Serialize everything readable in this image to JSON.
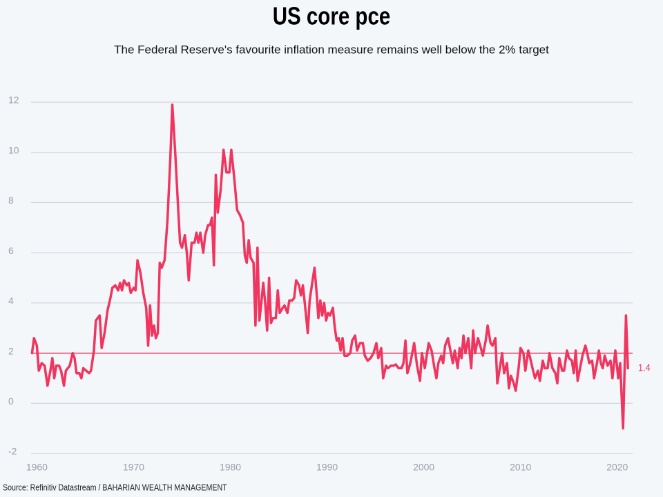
{
  "chart_data": {
    "type": "line",
    "title": "US core pce",
    "subtitle": "The Federal Reserve's favourite inflation measure remains well below the 2% target",
    "source": "Source: Refinitiv Datastream / BAHARIAN WEALTH MANAGEMENT",
    "xlim": [
      1959.4,
      2021.3
    ],
    "ylim": [
      -2,
      12
    ],
    "xticks": [
      1960,
      1970,
      1980,
      1990,
      2000,
      2010,
      2020
    ],
    "yticks": [
      -2,
      0,
      2,
      4,
      6,
      8,
      10,
      12
    ],
    "grid": true,
    "target_line": 2,
    "x": [
      1959.5,
      1959.7,
      1960.0,
      1960.2,
      1960.5,
      1960.8,
      1961.1,
      1961.4,
      1961.6,
      1961.8,
      1962.0,
      1962.3,
      1962.5,
      1962.8,
      1963.0,
      1963.4,
      1963.7,
      1963.9,
      1964.1,
      1964.4,
      1964.6,
      1964.8,
      1965.1,
      1965.4,
      1965.6,
      1965.9,
      1966.1,
      1966.5,
      1966.7,
      1967.0,
      1967.3,
      1967.6,
      1967.8,
      1968.1,
      1968.4,
      1968.6,
      1968.8,
      1969.0,
      1969.3,
      1969.5,
      1969.7,
      1970.0,
      1970.2,
      1970.4,
      1970.7,
      1971.0,
      1971.3,
      1971.5,
      1971.7,
      1971.9,
      1972.1,
      1972.3,
      1972.5,
      1972.7,
      1972.9,
      1973.2,
      1973.5,
      1973.8,
      1974.0,
      1974.3,
      1974.6,
      1974.8,
      1975.0,
      1975.3,
      1975.5,
      1975.7,
      1976.0,
      1976.3,
      1976.5,
      1976.7,
      1976.9,
      1977.2,
      1977.4,
      1977.7,
      1977.9,
      1978.1,
      1978.3,
      1978.5,
      1978.7,
      1979.0,
      1979.3,
      1979.6,
      1979.9,
      1980.1,
      1980.4,
      1980.7,
      1981.0,
      1981.3,
      1981.5,
      1981.7,
      1981.9,
      1982.1,
      1982.4,
      1982.6,
      1982.8,
      1983.0,
      1983.2,
      1983.4,
      1983.6,
      1983.8,
      1984.0,
      1984.2,
      1984.4,
      1984.7,
      1984.9,
      1985.1,
      1985.4,
      1985.6,
      1985.9,
      1986.1,
      1986.4,
      1986.6,
      1986.8,
      1987.1,
      1987.3,
      1987.5,
      1987.8,
      1988.0,
      1988.2,
      1988.5,
      1988.7,
      1988.9,
      1989.1,
      1989.3,
      1989.5,
      1989.7,
      1989.9,
      1990.1,
      1990.3,
      1990.6,
      1990.8,
      1991.0,
      1991.2,
      1991.4,
      1991.6,
      1991.8,
      1992.1,
      1992.4,
      1992.6,
      1992.9,
      1993.1,
      1993.4,
      1993.7,
      1993.9,
      1994.2,
      1994.5,
      1994.8,
      1995.1,
      1995.3,
      1995.6,
      1995.8,
      1996.1,
      1996.3,
      1996.6,
      1996.9,
      1997.1,
      1997.4,
      1997.7,
      1997.9,
      1998.1,
      1998.3,
      1998.6,
      1998.8,
      1999.0,
      1999.3,
      1999.6,
      1999.8,
      2000.1,
      2000.3,
      2000.5,
      2000.8,
      2001.1,
      2001.3,
      2001.5,
      2001.8,
      2002.0,
      2002.2,
      2002.5,
      2002.8,
      2003.0,
      2003.2,
      2003.5,
      2003.7,
      2003.9,
      2004.1,
      2004.3,
      2004.6,
      2004.9,
      2005.1,
      2005.3,
      2005.6,
      2005.9,
      2006.1,
      2006.4,
      2006.6,
      2006.9,
      2007.1,
      2007.4,
      2007.6,
      2007.9,
      2008.1,
      2008.3,
      2008.6,
      2008.8,
      2009.0,
      2009.3,
      2009.5,
      2009.8,
      2010.0,
      2010.3,
      2010.5,
      2010.8,
      2011.0,
      2011.3,
      2011.5,
      2011.8,
      2012.0,
      2012.3,
      2012.5,
      2012.8,
      2013.0,
      2013.3,
      2013.6,
      2013.8,
      2014.0,
      2014.3,
      2014.5,
      2014.8,
      2015.0,
      2015.3,
      2015.5,
      2015.7,
      2015.9,
      2016.2,
      2016.4,
      2016.7,
      2016.9,
      2017.1,
      2017.4,
      2017.6,
      2017.9,
      2018.1,
      2018.3,
      2018.5,
      2018.7,
      2019.0,
      2019.3,
      2019.5,
      2019.8,
      2020.1,
      2020.3,
      2020.6,
      2020.9,
      2021.1
    ],
    "series": [
      {
        "color": "#f0355f",
        "values": [
          2.0,
          2.6,
          2.3,
          1.3,
          1.6,
          1.5,
          0.7,
          1.3,
          1.8,
          1.0,
          1.5,
          1.5,
          1.3,
          0.7,
          1.3,
          1.5,
          2.0,
          1.8,
          1.2,
          1.2,
          1.0,
          1.4,
          1.3,
          1.2,
          1.3,
          2.1,
          3.3,
          3.5,
          2.2,
          2.8,
          3.7,
          4.2,
          4.6,
          4.7,
          4.5,
          4.8,
          4.5,
          4.9,
          4.7,
          4.8,
          4.4,
          4.6,
          4.5,
          5.7,
          5.2,
          4.4,
          3.8,
          2.3,
          3.9,
          2.7,
          3.1,
          2.6,
          2.8,
          5.6,
          5.4,
          5.7,
          7.3,
          9.8,
          11.9,
          10.0,
          7.8,
          6.4,
          6.2,
          6.7,
          6.0,
          4.9,
          6.4,
          6.4,
          6.8,
          6.4,
          6.8,
          6.0,
          6.7,
          7.1,
          7.1,
          7.4,
          5.5,
          9.1,
          7.6,
          8.5,
          10.1,
          9.2,
          9.2,
          10.1,
          9.0,
          7.7,
          7.5,
          7.2,
          5.9,
          5.6,
          6.5,
          5.8,
          5.6,
          3.1,
          6.2,
          3.3,
          4.0,
          4.8,
          4.0,
          2.9,
          5.0,
          3.2,
          3.4,
          3.4,
          4.5,
          3.6,
          3.8,
          3.9,
          3.6,
          4.1,
          4.1,
          4.2,
          4.9,
          4.7,
          4.3,
          4.7,
          3.6,
          2.8,
          4.1,
          4.9,
          5.4,
          4.5,
          3.4,
          4.1,
          3.5,
          4.0,
          3.3,
          3.6,
          3.5,
          3.8,
          3.0,
          2.5,
          2.6,
          2.1,
          2.6,
          1.9,
          1.9,
          2.0,
          2.5,
          2.7,
          2.1,
          2.4,
          2.4,
          1.9,
          1.7,
          1.8,
          2.0,
          2.4,
          1.8,
          2.2,
          1.0,
          1.5,
          1.4,
          1.5,
          1.5,
          1.55,
          1.4,
          1.4,
          1.6,
          2.5,
          1.2,
          1.6,
          2.0,
          2.4,
          1.5,
          0.9,
          2.0,
          1.4,
          1.9,
          2.4,
          2.1,
          1.4,
          1.0,
          1.6,
          1.9,
          1.6,
          2.3,
          2.6,
          2.0,
          1.6,
          2.1,
          1.4,
          2.2,
          1.8,
          2.7,
          2.0,
          2.6,
          1.4,
          2.9,
          2.0,
          2.6,
          2.2,
          1.9,
          2.5,
          3.1,
          2.4,
          2.3,
          2.6,
          0.8,
          1.5,
          2.0,
          1.2,
          1.6,
          0.6,
          1.1,
          0.8,
          0.5,
          1.4,
          2.2,
          2.0,
          1.3,
          2.1,
          1.8,
          1.3,
          1.0,
          1.3,
          0.9,
          1.7,
          1.4,
          1.4,
          2.0,
          1.4,
          1.2,
          0.8,
          1.8,
          1.3,
          1.3,
          2.1,
          1.8,
          1.7,
          1.2,
          2.1,
          0.9,
          1.5,
          1.9,
          2.3,
          2.0,
          1.6,
          1.7,
          1.0,
          1.6,
          2.1,
          1.6,
          1.4,
          1.9,
          1.5,
          1.7,
          1.0,
          2.1,
          1.0,
          1.6,
          -1.0,
          3.5,
          1.4
        ]
      }
    ]
  }
}
